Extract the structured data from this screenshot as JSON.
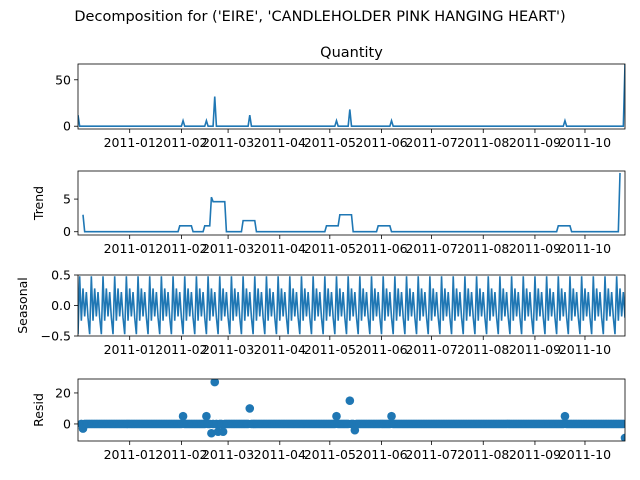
{
  "figure": {
    "suptitle": "Decomposition for ('EIRE', 'CANDLEHOLDER PINK HANGING HEART')",
    "line_color": "#1f77b4",
    "date_range": [
      "2010-12-01",
      "2011-10-25"
    ]
  },
  "chart_data": [
    {
      "type": "line",
      "title": "Quantity",
      "ylabel": "",
      "ylim": [
        -3,
        67
      ],
      "yticks": [
        0,
        50
      ],
      "xticks": [
        "2011-01",
        "2011-02",
        "2011-03",
        "2011-04",
        "2011-05",
        "2011-06",
        "2011-07",
        "2011-08",
        "2011-09",
        "2011-10"
      ],
      "spikes": [
        {
          "date": "2010-12-01",
          "value": 12
        },
        {
          "date": "2011-02-02",
          "value": 6
        },
        {
          "date": "2011-02-16",
          "value": 6
        },
        {
          "date": "2011-02-21",
          "value": 32
        },
        {
          "date": "2011-03-14",
          "value": 12
        },
        {
          "date": "2011-05-05",
          "value": 6
        },
        {
          "date": "2011-05-13",
          "value": 18
        },
        {
          "date": "2011-06-07",
          "value": 6
        },
        {
          "date": "2011-09-19",
          "value": 6
        },
        {
          "date": "2011-10-25",
          "value": 67
        }
      ]
    },
    {
      "type": "line",
      "title": "",
      "ylabel": "Trend",
      "ylim": [
        -0.5,
        9.3
      ],
      "yticks": [
        0,
        5
      ],
      "xticks": [
        "2011-01",
        "2011-02",
        "2011-03",
        "2011-04",
        "2011-05",
        "2011-06",
        "2011-07",
        "2011-08",
        "2011-09",
        "2011-10"
      ],
      "points": [
        {
          "date": "2010-12-04",
          "value": 2.6
        },
        {
          "date": "2010-12-05",
          "value": 0
        },
        {
          "date": "2011-01-30",
          "value": 0
        },
        {
          "date": "2011-01-31",
          "value": 0.9
        },
        {
          "date": "2011-02-07",
          "value": 0.9
        },
        {
          "date": "2011-02-08",
          "value": 0
        },
        {
          "date": "2011-02-14",
          "value": 0
        },
        {
          "date": "2011-02-15",
          "value": 0.9
        },
        {
          "date": "2011-02-18",
          "value": 0.9
        },
        {
          "date": "2011-02-19",
          "value": 5.3
        },
        {
          "date": "2011-02-20",
          "value": 4.6
        },
        {
          "date": "2011-02-27",
          "value": 4.6
        },
        {
          "date": "2011-02-28",
          "value": 0
        },
        {
          "date": "2011-03-09",
          "value": 0
        },
        {
          "date": "2011-03-10",
          "value": 1.7
        },
        {
          "date": "2011-03-17",
          "value": 1.7
        },
        {
          "date": "2011-03-18",
          "value": 0
        },
        {
          "date": "2011-04-28",
          "value": 0
        },
        {
          "date": "2011-04-29",
          "value": 0.9
        },
        {
          "date": "2011-05-06",
          "value": 0.9
        },
        {
          "date": "2011-05-07",
          "value": 2.6
        },
        {
          "date": "2011-05-14",
          "value": 2.6
        },
        {
          "date": "2011-05-15",
          "value": 0
        },
        {
          "date": "2011-05-29",
          "value": 0
        },
        {
          "date": "2011-05-30",
          "value": 0.9
        },
        {
          "date": "2011-06-06",
          "value": 0.9
        },
        {
          "date": "2011-06-07",
          "value": 0
        },
        {
          "date": "2011-09-14",
          "value": 0
        },
        {
          "date": "2011-09-15",
          "value": 0.9
        },
        {
          "date": "2011-09-22",
          "value": 0.9
        },
        {
          "date": "2011-09-23",
          "value": 0
        },
        {
          "date": "2011-10-21",
          "value": 0
        },
        {
          "date": "2011-10-22",
          "value": 9
        }
      ]
    },
    {
      "type": "line",
      "title": "",
      "ylabel": "Seasonal",
      "ylim": [
        -0.5,
        0.5
      ],
      "yticks": [
        -0.5,
        0.0,
        0.5
      ],
      "ytick_labels": [
        "−0.5",
        "0.0",
        "0.5"
      ],
      "xticks": [
        "2011-01",
        "2011-02",
        "2011-03",
        "2011-04",
        "2011-05",
        "2011-06",
        "2011-07",
        "2011-08",
        "2011-09",
        "2011-10"
      ],
      "period_days": 7,
      "weekly_pattern": [
        -0.47,
        0.48,
        -0.25,
        0.28,
        -0.18,
        0.22,
        -0.2
      ]
    },
    {
      "type": "scatter",
      "title": "",
      "ylabel": "Resid",
      "ylim": [
        -11,
        29
      ],
      "yticks": [
        0,
        20
      ],
      "xticks": [
        "2011-01",
        "2011-02",
        "2011-03",
        "2011-04",
        "2011-05",
        "2011-06",
        "2011-07",
        "2011-08",
        "2011-09",
        "2011-10"
      ],
      "baseline_value": 0,
      "outliers": [
        {
          "date": "2010-12-04",
          "value": -3
        },
        {
          "date": "2011-02-02",
          "value": 5
        },
        {
          "date": "2011-02-16",
          "value": 5
        },
        {
          "date": "2011-02-19",
          "value": -6
        },
        {
          "date": "2011-02-21",
          "value": 27
        },
        {
          "date": "2011-02-23",
          "value": -5
        },
        {
          "date": "2011-02-26",
          "value": -5
        },
        {
          "date": "2011-03-14",
          "value": 10
        },
        {
          "date": "2011-05-05",
          "value": 5
        },
        {
          "date": "2011-05-13",
          "value": 15
        },
        {
          "date": "2011-05-16",
          "value": -4
        },
        {
          "date": "2011-06-07",
          "value": 5
        },
        {
          "date": "2011-09-19",
          "value": 5
        },
        {
          "date": "2011-10-25",
          "value": -9
        }
      ]
    }
  ]
}
